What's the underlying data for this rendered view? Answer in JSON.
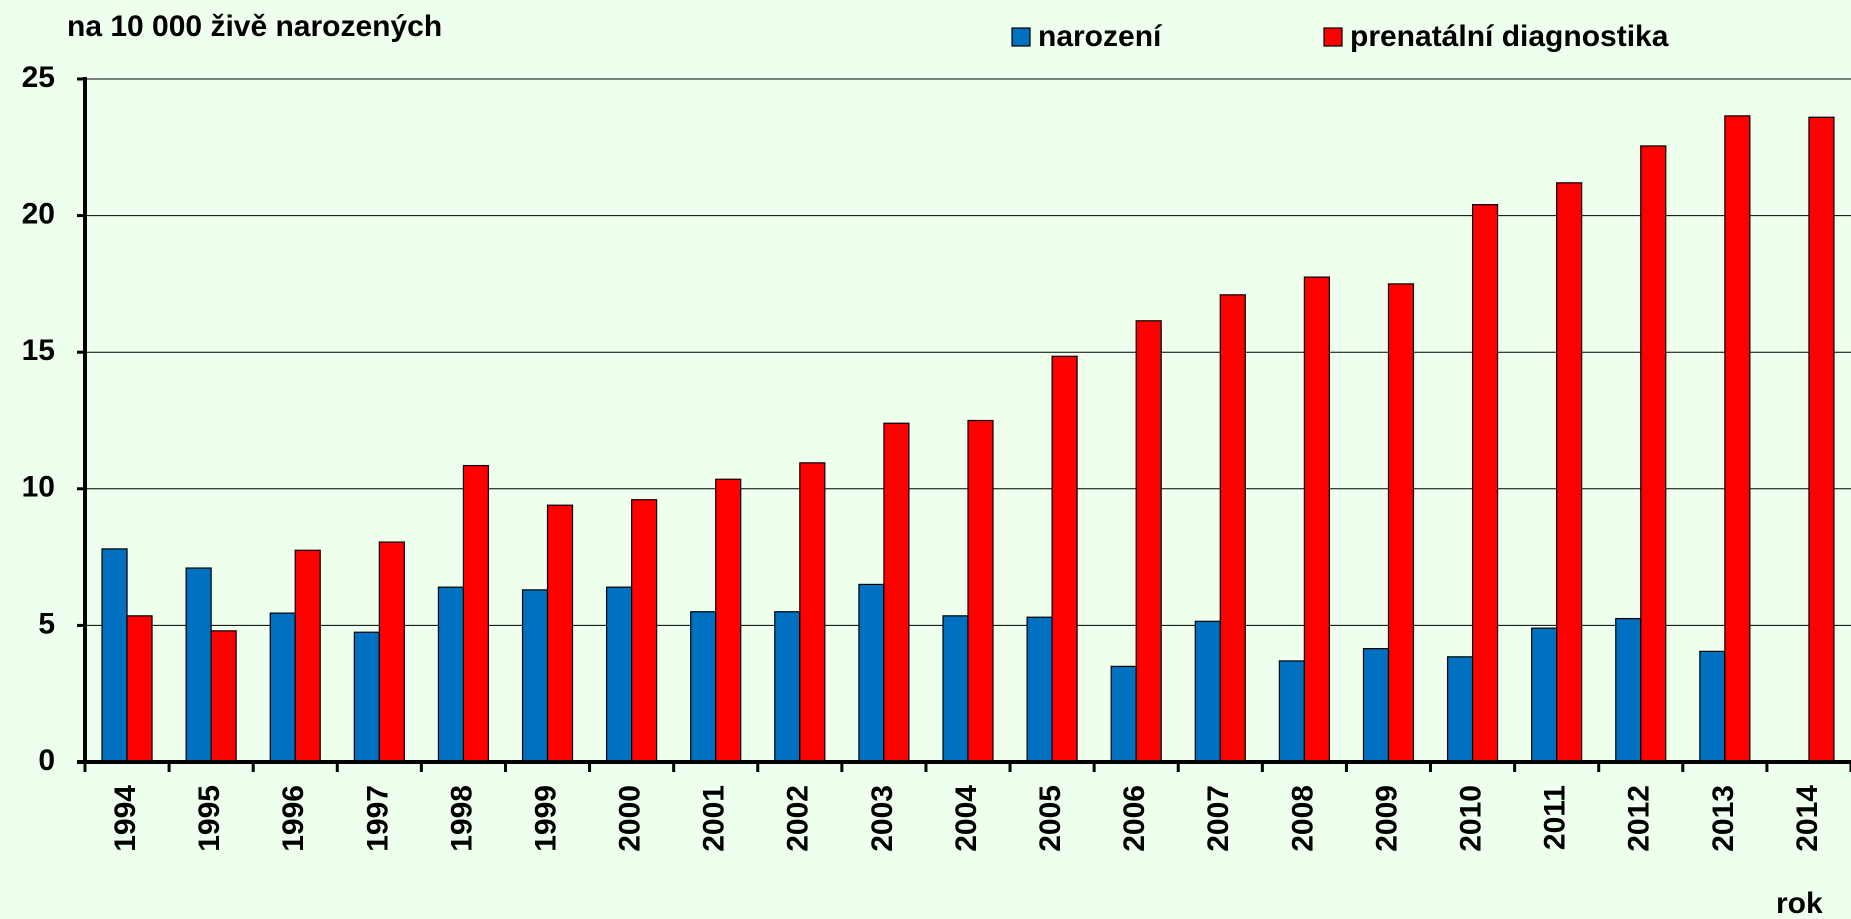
{
  "chart_data": {
    "type": "bar",
    "ylabel": "na 10 000 živě narozených",
    "xlabel": "rok",
    "categories": [
      "1994",
      "1995",
      "1996",
      "1997",
      "1998",
      "1999",
      "2000",
      "2001",
      "2002",
      "2003",
      "2004",
      "2005",
      "2006",
      "2007",
      "2008",
      "2009",
      "2010",
      "2011",
      "2012",
      "2013",
      "2014"
    ],
    "series": [
      {
        "name": "narození",
        "color": "#0070c0",
        "values": [
          7.8,
          7.1,
          5.45,
          4.75,
          6.4,
          6.3,
          6.4,
          5.5,
          5.5,
          6.5,
          5.35,
          5.3,
          3.5,
          5.15,
          3.7,
          4.15,
          3.85,
          4.9,
          5.25,
          4.05,
          null
        ]
      },
      {
        "name": "prenatální diagnostika",
        "color": "#ff0000",
        "values": [
          5.35,
          4.8,
          7.75,
          8.05,
          10.85,
          9.4,
          9.6,
          10.35,
          10.95,
          12.4,
          12.5,
          14.85,
          16.15,
          17.1,
          17.75,
          17.5,
          20.4,
          21.2,
          22.55,
          23.65,
          23.6
        ]
      }
    ],
    "ylim": [
      0,
      25
    ],
    "yticks": [
      0,
      5,
      10,
      15,
      20,
      25
    ],
    "grid": true
  }
}
